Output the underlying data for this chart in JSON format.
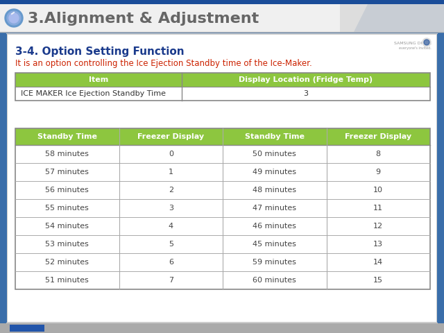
{
  "title": "3.Alignment & Adjustment",
  "subtitle": "3-4. Option Setting Function",
  "red_text": "It is an option controlling the Ice Ejection Standby time of the Ice-Maker.",
  "header_color": "#8dc63f",
  "table1_headers": [
    "Item",
    "Display Location (Fridge Temp)"
  ],
  "table1_row": [
    "ICE MAKER Ice Ejection Standby Time",
    "3"
  ],
  "table2_headers": [
    "Standby Time",
    "Freezer Display",
    "Standby Time",
    "Freezer Display"
  ],
  "table2_rows": [
    [
      "58 minutes",
      "0",
      "50 minutes",
      "8"
    ],
    [
      "57 minutes",
      "1",
      "49 minutes",
      "9"
    ],
    [
      "56 minutes",
      "2",
      "48 minutes",
      "10"
    ],
    [
      "55 minutes",
      "3",
      "47 minutes",
      "11"
    ],
    [
      "54 minutes",
      "4",
      "46 minutes",
      "12"
    ],
    [
      "53 minutes",
      "5",
      "45 minutes",
      "13"
    ],
    [
      "52 minutes",
      "6",
      "59 minutes",
      "14"
    ],
    [
      "51 minutes",
      "7",
      "60 minutes",
      "15"
    ]
  ],
  "outer_bg": "#3a6eaa",
  "inner_bg": "#ffffff",
  "header_tab_bg": "#e8e8e8",
  "header_tab_text_color": "#777777",
  "top_stripe_color": "#1a4d99",
  "title_text_color": "#666666",
  "subtitle_color": "#1a3a8c",
  "red_text_color": "#cc2200",
  "border_color": "#888888",
  "cell_border_color": "#aaaaaa",
  "samsung_color": "#999999",
  "bottom_bar_color": "#aaaaaa",
  "bottom_blue_color": "#2255aa"
}
